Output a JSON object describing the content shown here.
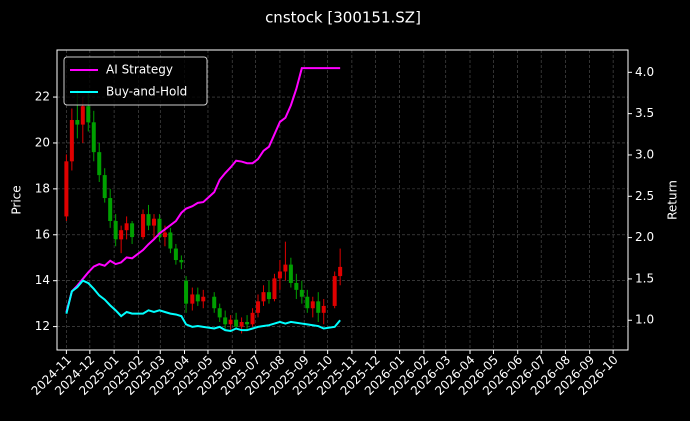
{
  "chart_data": {
    "type": "candlestick",
    "title": "cnstock [300151.SZ]",
    "ylabel": "Price",
    "y2label": "Return",
    "x": [
      "2024-11-01",
      "2024-11-08",
      "2024-11-15",
      "2024-11-22",
      "2024-11-29",
      "2024-12-06",
      "2024-12-13",
      "2024-12-20",
      "2024-12-27",
      "2025-01-03",
      "2025-01-10",
      "2025-01-17",
      "2025-01-24",
      "2025-02-07",
      "2025-02-14",
      "2025-02-21",
      "2025-02-28",
      "2025-03-07",
      "2025-03-14",
      "2025-03-21",
      "2025-03-28",
      "2025-04-03",
      "2025-04-11",
      "2025-04-18",
      "2025-04-25",
      "2025-05-09",
      "2025-05-16",
      "2025-05-23",
      "2025-05-30",
      "2025-06-06",
      "2025-06-13",
      "2025-06-20",
      "2025-06-27",
      "2025-07-04",
      "2025-07-11",
      "2025-07-18",
      "2025-07-25",
      "2025-08-01",
      "2025-08-08",
      "2025-08-15",
      "2025-08-22",
      "2025-08-29",
      "2025-09-05",
      "2025-09-12",
      "2025-09-19",
      "2025-09-26",
      "2025-10-10",
      "2025-10-17"
    ],
    "open": [
      16.8,
      19.2,
      21.0,
      20.8,
      21.6,
      20.9,
      19.6,
      18.6,
      17.6,
      16.6,
      15.8,
      16.2,
      16.5,
      15.9,
      16.9,
      16.4,
      16.7,
      15.9,
      16.1,
      15.4,
      14.9,
      14.0,
      13.0,
      13.4,
      13.1,
      13.3,
      12.8,
      12.4,
      12.1,
      12.3,
      12.0,
      12.2,
      12.1,
      12.6,
      13.1,
      13.5,
      13.2,
      14.1,
      14.4,
      14.7,
      13.9,
      13.6,
      13.3,
      12.8,
      13.1,
      12.6,
      12.9,
      14.2
    ],
    "high": [
      19.5,
      21.5,
      22.3,
      22.0,
      22.2,
      21.4,
      20.0,
      18.9,
      18.0,
      16.9,
      16.4,
      16.8,
      16.6,
      17.1,
      17.3,
      16.9,
      16.9,
      16.4,
      16.3,
      15.6,
      15.1,
      14.2,
      13.7,
      13.7,
      13.6,
      13.5,
      13.0,
      12.7,
      12.5,
      12.6,
      12.4,
      12.5,
      12.8,
      13.4,
      13.8,
      14.0,
      14.3,
      14.9,
      15.7,
      15.0,
      14.3,
      14.0,
      13.6,
      13.3,
      13.5,
      13.2,
      14.4,
      15.4
    ],
    "low": [
      16.6,
      18.8,
      20.2,
      20.0,
      20.5,
      19.2,
      18.3,
      17.4,
      16.3,
      15.5,
      15.2,
      15.8,
      15.6,
      15.8,
      16.2,
      15.8,
      15.7,
      15.5,
      15.2,
      14.7,
      14.5,
      12.6,
      12.7,
      12.9,
      12.8,
      12.6,
      12.2,
      11.9,
      11.8,
      11.9,
      11.7,
      11.9,
      12.0,
      12.4,
      12.9,
      13.0,
      13.1,
      13.6,
      14.0,
      13.7,
      13.2,
      13.0,
      12.6,
      12.4,
      12.2,
      12.1,
      12.8,
      13.8
    ],
    "close": [
      19.2,
      21.0,
      20.8,
      21.6,
      20.9,
      19.6,
      18.6,
      17.6,
      16.6,
      15.8,
      16.2,
      16.5,
      15.9,
      16.9,
      16.4,
      16.7,
      15.9,
      16.1,
      15.4,
      14.9,
      14.8,
      13.0,
      13.4,
      13.1,
      13.3,
      12.8,
      12.4,
      12.1,
      12.3,
      12.0,
      12.2,
      12.1,
      12.6,
      13.1,
      13.5,
      13.2,
      14.1,
      14.4,
      14.7,
      13.9,
      13.6,
      13.3,
      12.8,
      13.1,
      12.6,
      12.9,
      14.2,
      14.6
    ],
    "up_color": "#e00000",
    "down_color": "#00a000",
    "series": [
      {
        "name": "AI Strategy",
        "color": "#ff00ff",
        "axis": "y2",
        "values": [
          1.1,
          1.35,
          1.42,
          1.5,
          1.58,
          1.65,
          1.68,
          1.66,
          1.72,
          1.68,
          1.7,
          1.76,
          1.75,
          1.85,
          1.92,
          1.98,
          2.05,
          2.1,
          2.15,
          2.2,
          2.3,
          2.35,
          2.38,
          2.42,
          2.43,
          2.55,
          2.7,
          2.78,
          2.85,
          2.93,
          2.92,
          2.9,
          2.9,
          2.95,
          3.05,
          3.1,
          3.25,
          3.4,
          3.45,
          3.6,
          3.8,
          4.05,
          4.05,
          4.05,
          4.05,
          4.05,
          4.05,
          4.05
        ]
      },
      {
        "name": "Buy-and-Hold",
        "color": "#00ffff",
        "axis": "y2",
        "values": [
          1.08,
          1.35,
          1.4,
          1.48,
          1.45,
          1.38,
          1.3,
          1.25,
          1.18,
          1.12,
          1.05,
          1.1,
          1.08,
          1.08,
          1.12,
          1.1,
          1.12,
          1.1,
          1.08,
          1.07,
          1.05,
          0.95,
          0.92,
          0.93,
          0.92,
          0.9,
          0.92,
          0.88,
          0.87,
          0.9,
          0.88,
          0.88,
          0.9,
          0.92,
          0.93,
          0.94,
          0.96,
          0.98,
          0.96,
          0.98,
          0.97,
          0.96,
          0.95,
          0.94,
          0.93,
          0.9,
          0.92,
          1.0
        ]
      }
    ],
    "xlim": [
      "2024-10-20",
      "2026-10-20"
    ],
    "xticks": [
      {
        "value": "2024-11-01",
        "label": "2024-11"
      },
      {
        "value": "2024-12-01",
        "label": "2024-12"
      },
      {
        "value": "2025-01-01",
        "label": "2025-01"
      },
      {
        "value": "2025-02-01",
        "label": "2025-02"
      },
      {
        "value": "2025-03-01",
        "label": "2025-03"
      },
      {
        "value": "2025-04-01",
        "label": "2025-04"
      },
      {
        "value": "2025-05-01",
        "label": "2025-05"
      },
      {
        "value": "2025-06-01",
        "label": "2025-06"
      },
      {
        "value": "2025-07-01",
        "label": "2025-07"
      },
      {
        "value": "2025-08-01",
        "label": "2025-08"
      },
      {
        "value": "2025-09-01",
        "label": "2025-09"
      },
      {
        "value": "2025-10-01",
        "label": "2025-10"
      },
      {
        "value": "2025-11-01",
        "label": "2025-11"
      },
      {
        "value": "2025-12-01",
        "label": "2025-12"
      },
      {
        "value": "2026-01-01",
        "label": "2026-01"
      },
      {
        "value": "2026-02-01",
        "label": "2026-02"
      },
      {
        "value": "2026-03-01",
        "label": "2026-03"
      },
      {
        "value": "2026-04-01",
        "label": "2026-04"
      },
      {
        "value": "2026-05-01",
        "label": "2026-05"
      },
      {
        "value": "2026-06-01",
        "label": "2026-06"
      },
      {
        "value": "2026-07-01",
        "label": "2026-07"
      },
      {
        "value": "2026-08-01",
        "label": "2026-08"
      },
      {
        "value": "2026-09-01",
        "label": "2026-09"
      },
      {
        "value": "2026-10-01",
        "label": "2026-10"
      }
    ],
    "ylim": [
      10.98,
      24.05
    ],
    "yticks": [
      12,
      14,
      16,
      18,
      20,
      22
    ],
    "y2lim": [
      0.64,
      4.27
    ],
    "y2ticks": [
      {
        "value": 1,
        "label": "1.0"
      },
      1.5,
      {
        "value": 2,
        "label": "2.0"
      },
      2.5,
      {
        "value": 3,
        "label": "3.0"
      },
      3.5,
      {
        "value": 4,
        "label": "4.0"
      }
    ],
    "grid": true,
    "legend": "upper left"
  }
}
